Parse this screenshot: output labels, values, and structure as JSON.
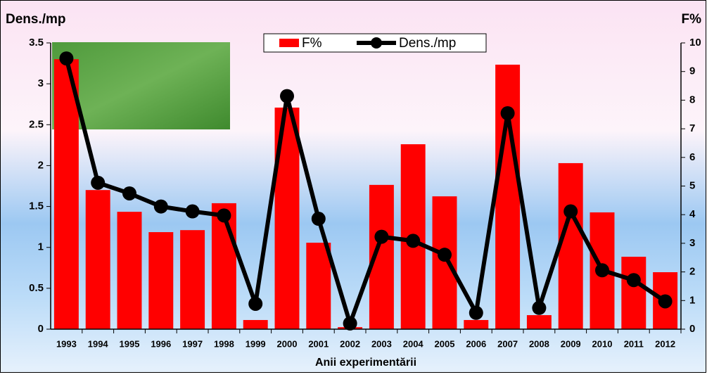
{
  "chart_data": {
    "type": "bar",
    "categories": [
      "1993",
      "1994",
      "1995",
      "1996",
      "1997",
      "1998",
      "1999",
      "2000",
      "2001",
      "2002",
      "2003",
      "2004",
      "2005",
      "2006",
      "2007",
      "2008",
      "2009",
      "2010",
      "2011",
      "2012"
    ],
    "series": [
      {
        "name": "F%",
        "type": "bar",
        "axis": "y2",
        "color": "#ff0000",
        "values": [
          9.43,
          4.86,
          4.1,
          3.39,
          3.46,
          4.4,
          0.32,
          7.74,
          3.02,
          0.07,
          5.04,
          6.46,
          4.64,
          0.32,
          9.24,
          0.49,
          5.8,
          4.08,
          2.53,
          1.99
        ]
      },
      {
        "name": "Dens./mp",
        "type": "line",
        "axis": "y",
        "color": "#000000",
        "values": [
          3.31,
          1.79,
          1.66,
          1.5,
          1.44,
          1.39,
          0.31,
          2.85,
          1.35,
          0.07,
          1.13,
          1.08,
          0.91,
          0.2,
          2.64,
          0.26,
          1.44,
          0.72,
          0.6,
          0.34
        ]
      }
    ],
    "y_label": "Dens./mp",
    "y2_label": "F%",
    "x_label": "Anii experimentării",
    "ylim": [
      0,
      3.5
    ],
    "yticks": [
      0,
      0.5,
      1,
      1.5,
      2,
      2.5,
      3,
      3.5
    ],
    "y2lim": [
      0,
      10
    ],
    "y2ticks": [
      0,
      1,
      2,
      3,
      4,
      5,
      6,
      7,
      8,
      9,
      10
    ],
    "legend": "top"
  }
}
